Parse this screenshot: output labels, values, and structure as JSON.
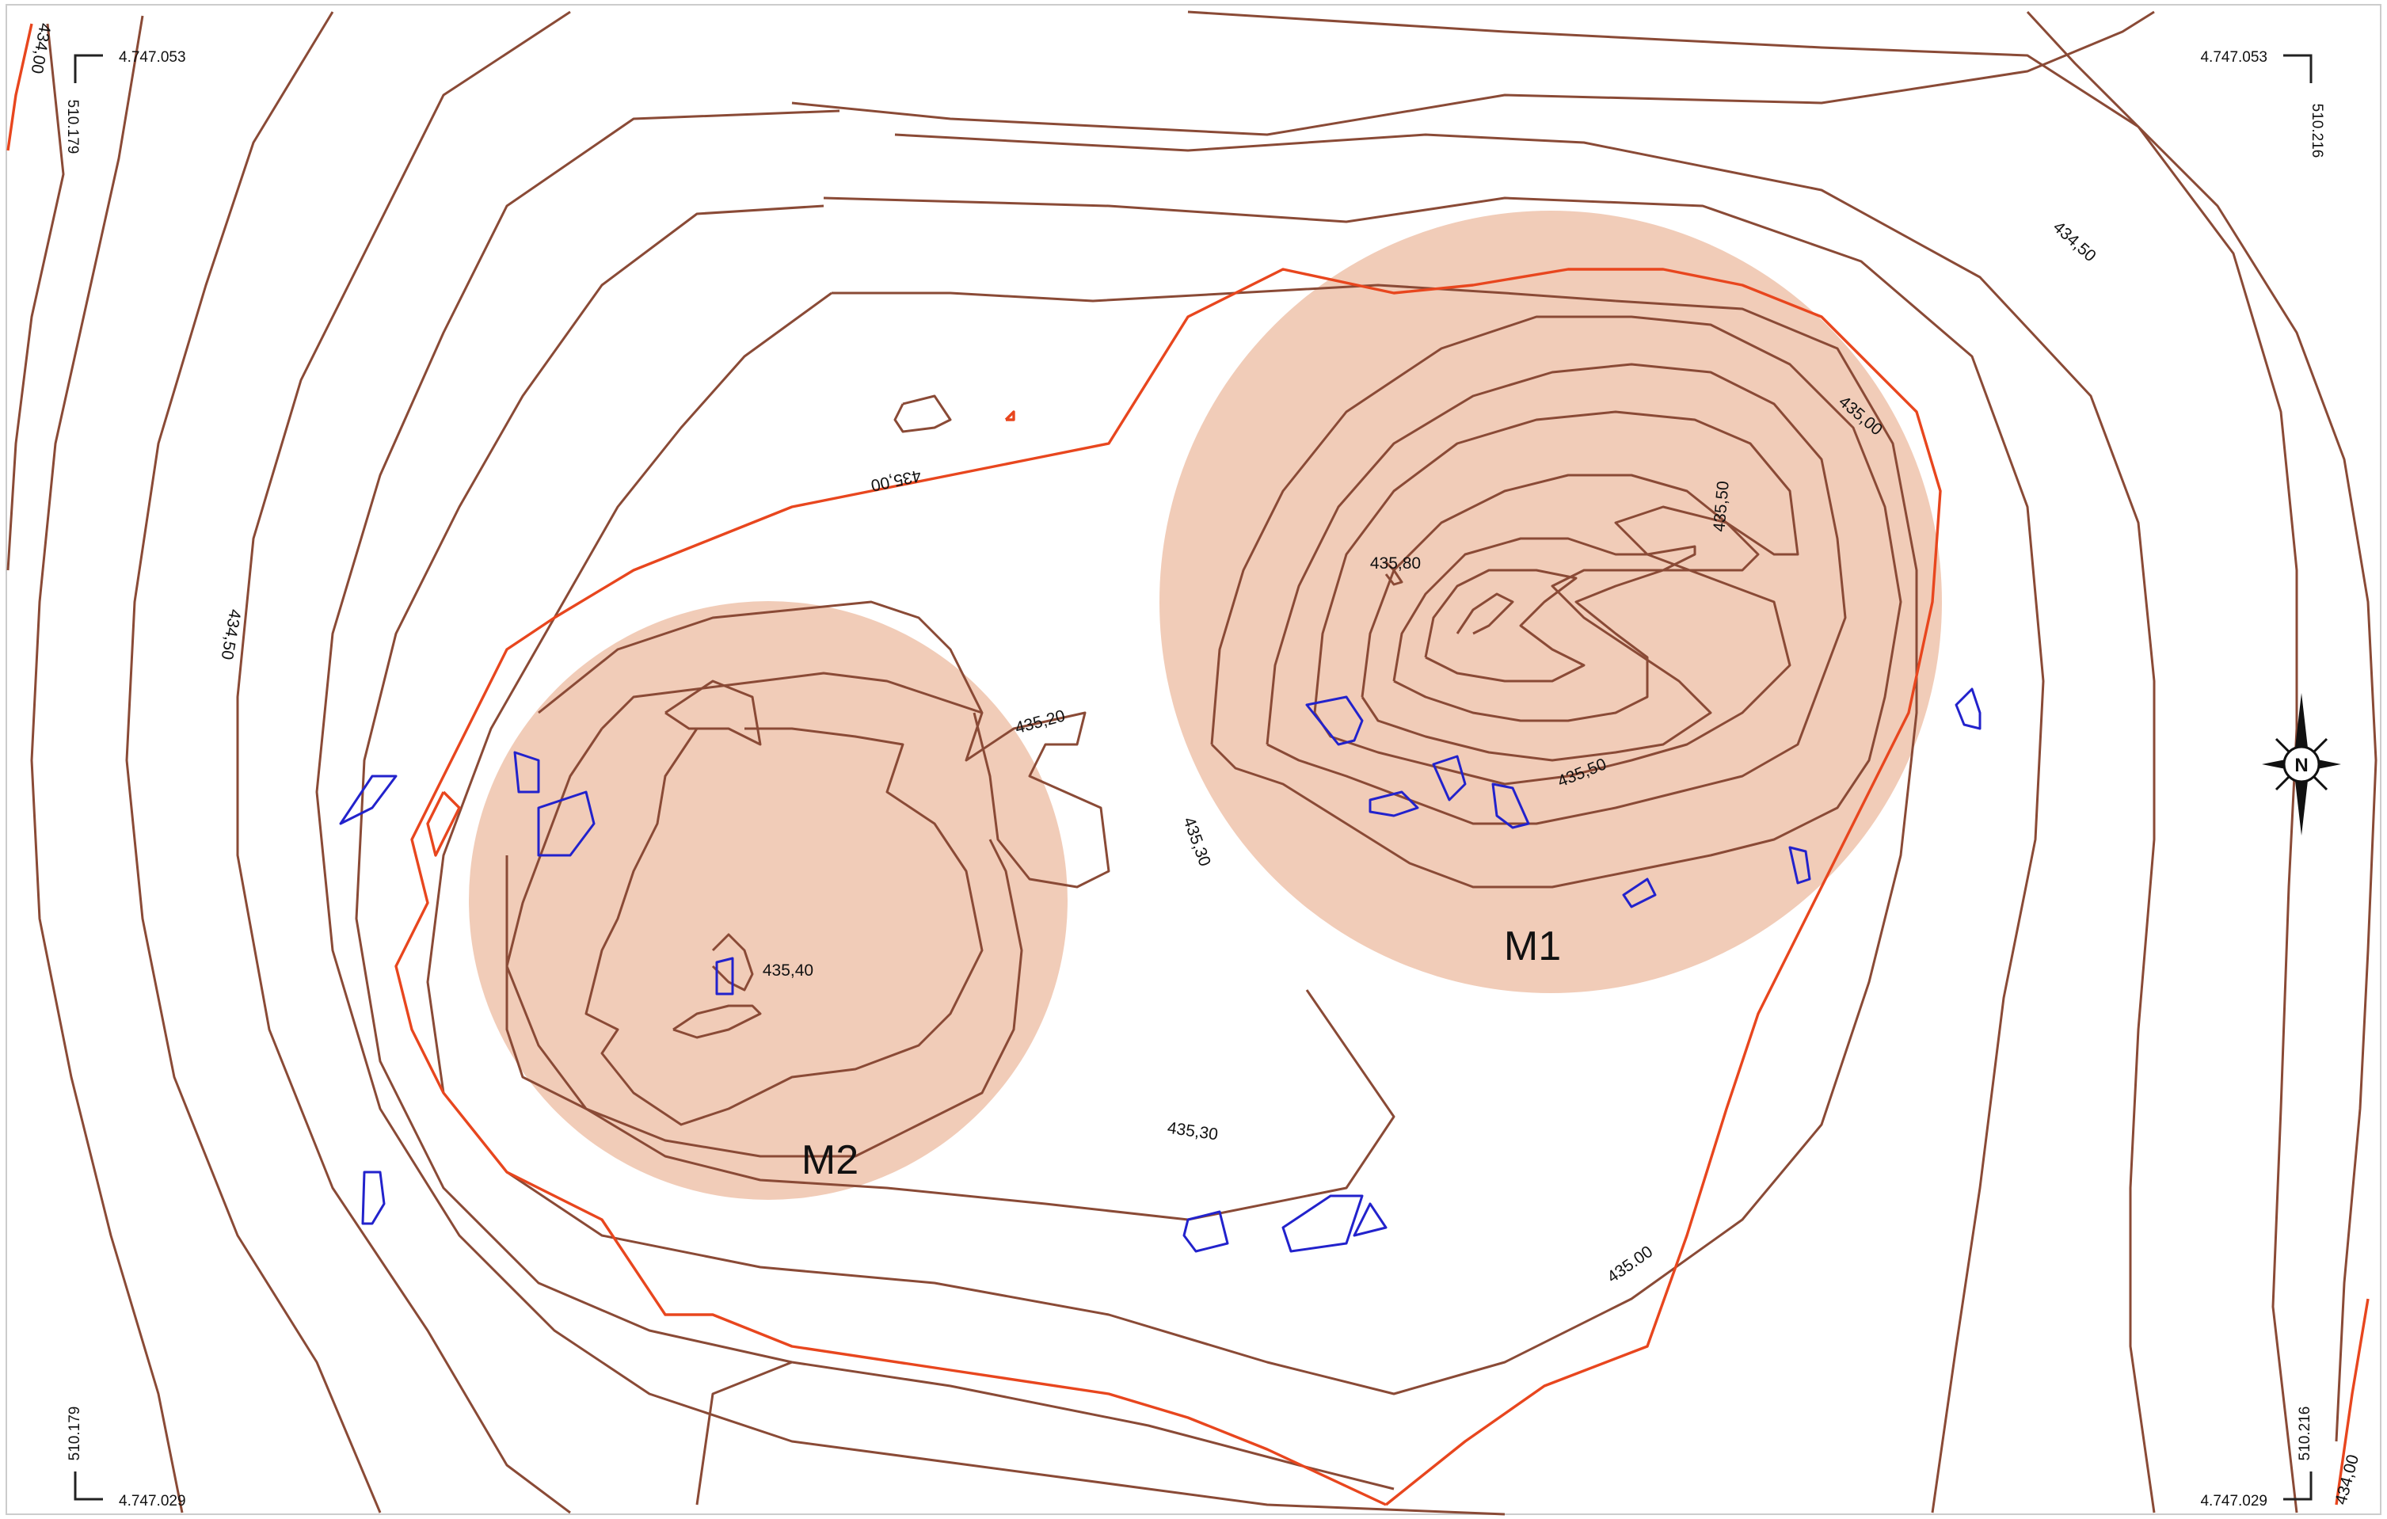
{
  "colors": {
    "contour": "#8a4a36",
    "index_contour": "#e8461e",
    "stones": "#2222cc",
    "mound_fill": "#efc3ab"
  },
  "corners": {
    "top_left": {
      "northing": "4.747.053",
      "easting": "510.179"
    },
    "top_right": {
      "northing": "4.747.053",
      "easting": "510.216"
    },
    "bottom_left": {
      "northing": "4.747.029",
      "easting": "510.179"
    },
    "bottom_right": {
      "northing": "4.747.029",
      "easting": "510.216"
    }
  },
  "mounds": [
    {
      "label": "M1"
    },
    {
      "label": "M2"
    }
  ],
  "contour_labels": {
    "tl_434_00": "434,00",
    "br_434_00": "434,00",
    "left_434_50": "434,50",
    "right_434_50": "434,50",
    "mid_435_00": "435,00",
    "right_435_00": "435,00",
    "bottom_435_00": "435.00",
    "m1_435_50_a": "435,50",
    "m1_435_50_b": "435,50",
    "m1_435_80": "435,80",
    "m2_435_40": "435,40",
    "m2_435_20": "435,20",
    "mid_435_30": "435,30",
    "bottom_435_30": "435,30"
  },
  "north_arrow": {
    "label": "N",
    "icon": "compass-rose-icon"
  }
}
